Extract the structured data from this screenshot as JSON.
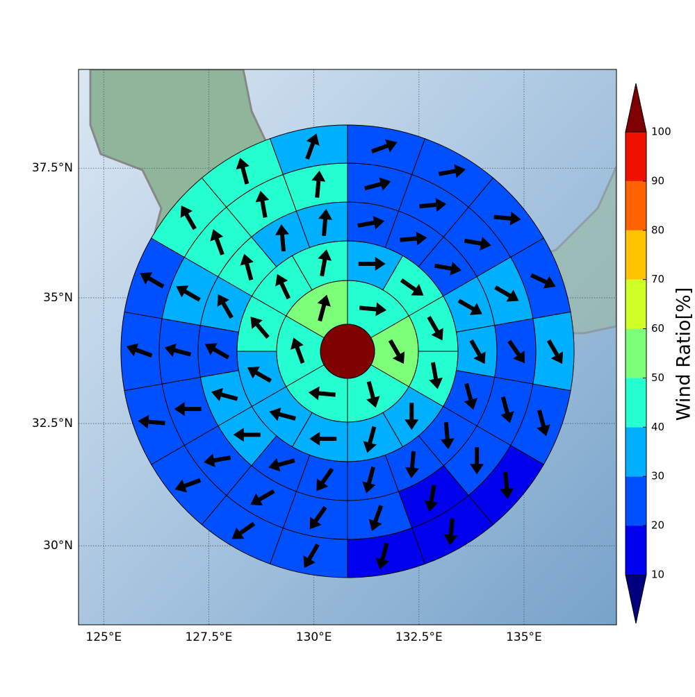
{
  "chart_data": {
    "type": "wind-rose-map",
    "xlim": [
      124.4,
      137.2
    ],
    "ylim": [
      28.35,
      39.35
    ],
    "xticks": [
      {
        "value": 125,
        "label": "125°E"
      },
      {
        "value": 127.5,
        "label": "127.5°E"
      },
      {
        "value": 130,
        "label": "130°E"
      },
      {
        "value": 132.5,
        "label": "132.5°E"
      },
      {
        "value": 135,
        "label": "135°E"
      }
    ],
    "yticks": [
      {
        "value": 30,
        "label": "30°N"
      },
      {
        "value": 32.5,
        "label": "32.5°N"
      },
      {
        "value": 35,
        "label": "35°N"
      },
      {
        "value": 37.5,
        "label": "37.5°N"
      }
    ],
    "grid": true,
    "colorbar": {
      "label": "Wind Ratio[%]",
      "levels": [
        10,
        20,
        30,
        40,
        50,
        60,
        70,
        80,
        90,
        100
      ],
      "colors": [
        "#00007f",
        "#0000ee",
        "#0050ff",
        "#00b0ff",
        "#26ffd0",
        "#7dff7a",
        "#d0ff26",
        "#ffc400",
        "#ff6200",
        "#ee1000",
        "#7f0000"
      ],
      "extend": "both"
    },
    "center_value": 105,
    "rings": [
      {
        "values": [
          45,
          55,
          45,
          45,
          45,
          55
        ],
        "directions": [
          95,
          150,
          165,
          275,
          340,
          15
        ]
      },
      {
        "values": [
          35,
          45,
          45,
          45,
          35,
          35,
          35,
          35,
          35,
          45,
          45,
          45
        ],
        "directions": [
          90,
          125,
          150,
          170,
          180,
          195,
          270,
          285,
          300,
          320,
          335,
          10
        ]
      },
      {
        "values": [
          25,
          25,
          25,
          35,
          35,
          25,
          25,
          25,
          25,
          25,
          25,
          35,
          35,
          25,
          35,
          45,
          35,
          35
        ],
        "directions": [
          80,
          85,
          100,
          120,
          150,
          165,
          175,
          185,
          195,
          215,
          255,
          270,
          285,
          300,
          330,
          345,
          355,
          5
        ]
      },
      {
        "values": [
          25,
          25,
          25,
          35,
          25,
          25,
          25,
          15,
          25,
          25,
          25,
          25,
          25,
          25,
          35,
          45,
          45,
          45
        ],
        "directions": [
          75,
          85,
          100,
          120,
          145,
          165,
          180,
          190,
          200,
          215,
          240,
          260,
          270,
          285,
          300,
          340,
          350,
          5
        ]
      },
      {
        "values": [
          25,
          25,
          25,
          25,
          35,
          25,
          15,
          15,
          15,
          25,
          25,
          25,
          25,
          25,
          25,
          45,
          45,
          35
        ],
        "directions": [
          70,
          80,
          95,
          115,
          150,
          165,
          175,
          185,
          195,
          210,
          235,
          250,
          275,
          290,
          300,
          330,
          345,
          20
        ]
      }
    ]
  }
}
